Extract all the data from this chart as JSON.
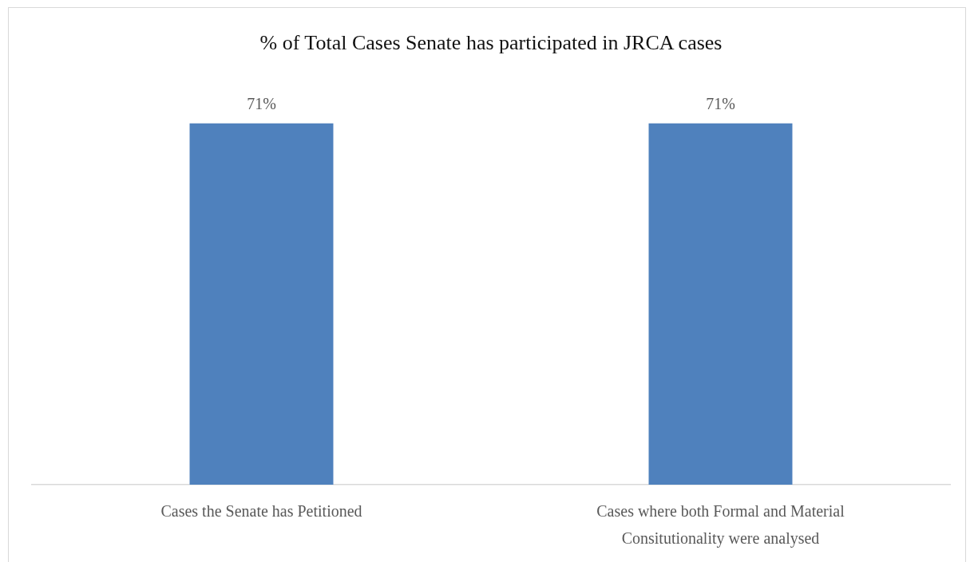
{
  "chart_data": {
    "type": "bar",
    "title": "% of Total Cases Senate has participated in JRCA cases",
    "categories": [
      "Cases the Senate has Petitioned",
      "Cases where both Formal and Material Consitutionality were analysed"
    ],
    "values": [
      71,
      71
    ],
    "color": "#4f81bd",
    "value_labels": [
      "71%",
      "71%"
    ]
  }
}
